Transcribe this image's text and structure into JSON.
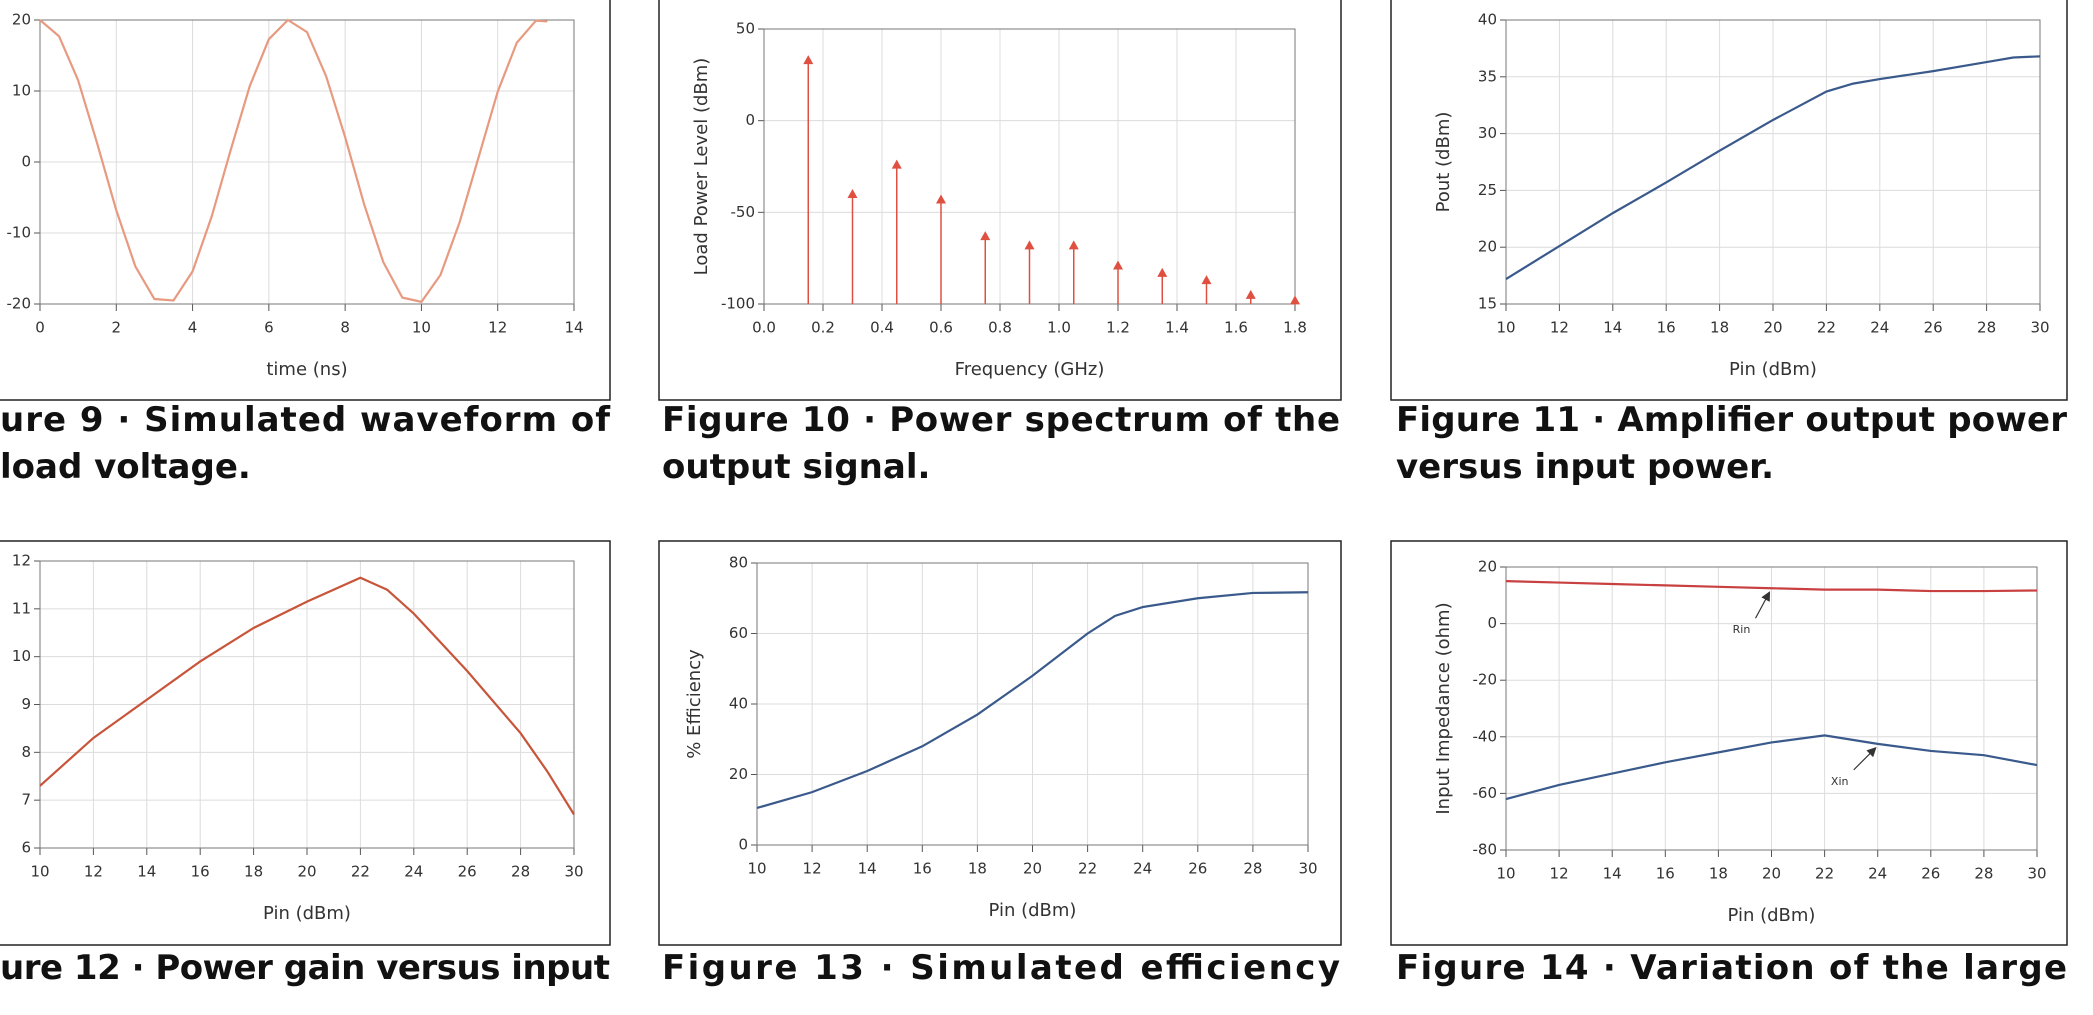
{
  "chart_data": [
    {
      "type": "line",
      "caption": [
        "ure 9 · Simulated waveform of",
        "load voltage."
      ],
      "xlabel": "time (ns)",
      "x": [
        0,
        0.5,
        1,
        1.5,
        2,
        2.5,
        3,
        3.5,
        4,
        4.5,
        5,
        5.5,
        6,
        6.5,
        7,
        7.5,
        8,
        8.5,
        9,
        9.5,
        10,
        10.5,
        11,
        11.5,
        12,
        12.5,
        13,
        13.3
      ],
      "values": [
        20,
        17.7,
        11.5,
        2.6,
        -6.8,
        -14.7,
        -19.3,
        -19.5,
        -15.4,
        -7.7,
        1.7,
        10.7,
        17.3,
        20,
        18.3,
        12.1,
        3.5,
        -6,
        -14.1,
        -19.1,
        -19.7,
        -15.9,
        -8.5,
        0.7,
        9.9,
        16.8,
        19.9,
        19.8
      ],
      "color": "#e89a80",
      "xlim": [
        0,
        14
      ],
      "xticks": [
        0,
        2,
        4,
        6,
        8,
        10,
        12,
        14
      ],
      "ylim": [
        -20,
        20
      ],
      "yticks": [
        -20,
        -10,
        0,
        10,
        20
      ],
      "grid": true
    },
    {
      "type": "stem",
      "caption": [
        "Figure 10 · Power spectrum of the",
        "output signal."
      ],
      "xlabel": "Frequency (GHz)",
      "ylabel": "Load Power Level (dBm)",
      "x": [
        0.15,
        0.3,
        0.45,
        0.6,
        0.75,
        0.9,
        1.05,
        1.2,
        1.35,
        1.5,
        1.65,
        1.8
      ],
      "values": [
        33,
        -40,
        -24,
        -43,
        -63,
        -68,
        -68,
        -79,
        -83,
        -87,
        -95,
        -98
      ],
      "color": "#e05040",
      "xlim": [
        0,
        1.8
      ],
      "xticks": [
        {
          "value": 0,
          "label": "0.0"
        },
        0.2,
        0.4,
        0.6,
        0.8,
        {
          "value": 1,
          "label": "1.0"
        },
        1.2,
        1.4,
        1.6,
        1.8
      ],
      "ylim": [
        -100,
        50
      ],
      "yticks": [
        -100,
        -50,
        0,
        50
      ],
      "grid": true
    },
    {
      "type": "line",
      "caption": [
        "Figure 11 · Amplifier output power",
        "versus input power."
      ],
      "xlabel": "Pin (dBm)",
      "ylabel": "Pout (dBm)",
      "x": [
        10,
        12,
        14,
        16,
        18,
        20,
        22,
        23,
        24,
        26,
        28,
        29,
        30
      ],
      "values": [
        17.2,
        20.1,
        23,
        25.7,
        28.5,
        31.2,
        33.7,
        34.4,
        34.8,
        35.5,
        36.3,
        36.7,
        36.8
      ],
      "color": "#3a5a8c",
      "xlim": [
        10,
        30
      ],
      "xticks": [
        10,
        12,
        14,
        16,
        18,
        20,
        22,
        24,
        26,
        28,
        30
      ],
      "ylim": [
        15,
        40
      ],
      "yticks": [
        15,
        20,
        25,
        30,
        35,
        40
      ],
      "grid": true
    },
    {
      "type": "line",
      "caption": [
        "ure 12 · Power gain versus input"
      ],
      "xlabel": "Pin (dBm)",
      "x": [
        10,
        12,
        14,
        16,
        18,
        20,
        22,
        23,
        24,
        26,
        28,
        29,
        30
      ],
      "values": [
        7.3,
        8.3,
        9.1,
        9.9,
        10.6,
        11.15,
        11.65,
        11.4,
        10.9,
        9.7,
        8.4,
        7.6,
        6.7
      ],
      "color": "#c8553a",
      "xlim": [
        10,
        30
      ],
      "xticks": [
        10,
        12,
        14,
        16,
        18,
        20,
        22,
        24,
        26,
        28,
        30
      ],
      "ylim": [
        6,
        12
      ],
      "yticks": [
        6,
        7,
        8,
        9,
        10,
        11,
        12
      ],
      "grid": true
    },
    {
      "type": "line",
      "caption": [
        "Figure 13 · Simulated efficiency"
      ],
      "xlabel": "Pin (dBm)",
      "ylabel": "% Efficiency",
      "x": [
        10,
        12,
        14,
        16,
        18,
        20,
        22,
        23,
        24,
        26,
        28,
        30
      ],
      "values": [
        10.5,
        15,
        21,
        28,
        37,
        48,
        60,
        65,
        67.5,
        70,
        71.5,
        71.7
      ],
      "color": "#3a5a8c",
      "xlim": [
        10,
        30
      ],
      "xticks": [
        10,
        12,
        14,
        16,
        18,
        20,
        22,
        24,
        26,
        28,
        30
      ],
      "ylim": [
        0,
        80
      ],
      "yticks": [
        0,
        20,
        40,
        60,
        80
      ],
      "grid": true
    },
    {
      "type": "line",
      "caption": [
        "Figure 14 · Variation of the large"
      ],
      "xlabel": "Pin (dBm)",
      "ylabel": "Input Impedance (ohm)",
      "x": [
        10,
        12,
        14,
        16,
        18,
        20,
        22,
        24,
        26,
        28,
        30
      ],
      "series": [
        {
          "name": "Rin",
          "color": "#c84040",
          "values": [
            15,
            14.5,
            14,
            13.5,
            13,
            12.5,
            12,
            12,
            11.5,
            11.5,
            11.7
          ]
        },
        {
          "name": "Xin",
          "color": "#3a5a8c",
          "values": [
            -62,
            -57,
            -53,
            -49,
            -45.5,
            -42,
            -39.5,
            -42.5,
            -45,
            -46.5,
            -50
          ]
        }
      ],
      "xlim": [
        10,
        30
      ],
      "xticks": [
        10,
        12,
        14,
        16,
        18,
        20,
        22,
        24,
        26,
        28,
        30
      ],
      "ylim": [
        -80,
        20
      ],
      "yticks": [
        -80,
        -60,
        -40,
        -20,
        0,
        20
      ],
      "grid": true
    }
  ]
}
